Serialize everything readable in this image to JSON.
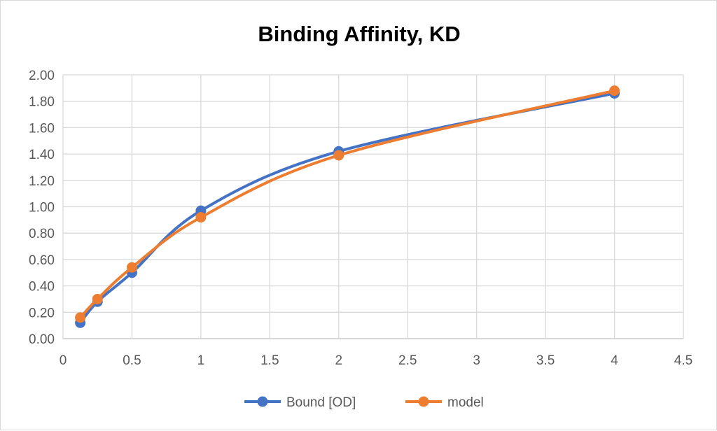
{
  "chart_data": {
    "type": "scatter",
    "title": "Binding Affinity, KD",
    "xlabel": "",
    "ylabel": "",
    "xlim": [
      0,
      4.5
    ],
    "ylim": [
      0,
      2
    ],
    "x_ticks": [
      "0",
      "0.5",
      "1",
      "1.5",
      "2",
      "2.5",
      "3",
      "3.5",
      "4",
      "4.5"
    ],
    "y_ticks": [
      "0.00",
      "0.20",
      "0.40",
      "0.60",
      "0.80",
      "1.00",
      "1.20",
      "1.40",
      "1.60",
      "1.80",
      "2.00"
    ],
    "grid": true,
    "smooth_lines": true,
    "legend_position": "bottom",
    "series": [
      {
        "name": "Bound [OD]",
        "color": "#4472C4",
        "x": [
          0.125,
          0.25,
          0.5,
          1,
          2,
          4
        ],
        "y": [
          0.12,
          0.28,
          0.5,
          0.97,
          1.42,
          1.86
        ]
      },
      {
        "name": "model",
        "color": "#ED7D31",
        "x": [
          0.125,
          0.25,
          0.5,
          1,
          2,
          4
        ],
        "y": [
          0.16,
          0.3,
          0.54,
          0.92,
          1.39,
          1.88
        ]
      }
    ]
  }
}
